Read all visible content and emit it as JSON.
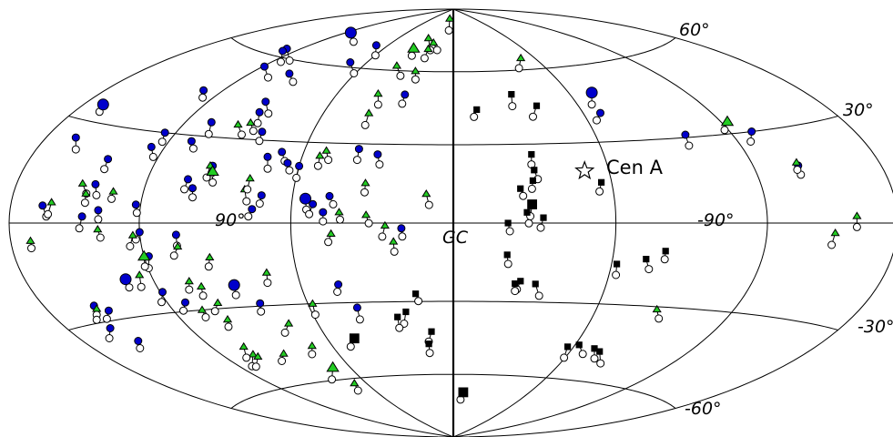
{
  "chart_data": {
    "type": "scatter",
    "projection": "aitoff-hammer, galactic coordinates, longitude increasing to the left",
    "x_range_deg": [
      -180,
      180
    ],
    "y_range_deg": [
      -90,
      90
    ],
    "labels": {
      "galactic_center": "GC",
      "source": "Cen A",
      "lon_left": "90°",
      "lon_right": "-90°",
      "lat_60n": "60°",
      "lat_30n": "30°",
      "lat_30s": "-30°",
      "lat_60s": "-60°"
    },
    "meridians_deg": [
      -180,
      -120,
      -60,
      0,
      60,
      120,
      180
    ],
    "parallels_deg": [
      -60,
      -30,
      0,
      30,
      60
    ],
    "marker_colors": {
      "circle_fill": "#0000cc",
      "triangle_fill": "#22cc22",
      "square_fill": "#000000",
      "open": "#ffffff"
    },
    "cen_a": {
      "lon": -50.5,
      "lat": 19.4
    },
    "series": [
      {
        "marker": "circle",
        "points": [
          [
            170,
            35
          ],
          [
            165,
            25
          ],
          [
            164,
            5
          ],
          [
            158,
            -32
          ],
          [
            155,
            -25
          ],
          [
            150,
            -27
          ],
          [
            152,
            -37
          ],
          [
            145,
            2
          ],
          [
            142,
            12
          ],
          [
            142,
            20
          ],
          [
            138,
            4
          ],
          [
            132,
            -18
          ],
          [
            130,
            45
          ],
          [
            129,
            63
          ],
          [
            128,
            62
          ],
          [
            126,
            25
          ],
          [
            125,
            30
          ],
          [
            122,
            6
          ],
          [
            120,
            -3
          ],
          [
            118,
            -11
          ],
          [
            119,
            56
          ],
          [
            119,
            -23
          ],
          [
            116,
            73
          ],
          [
            112,
            -27
          ],
          [
            110,
            28
          ],
          [
            108,
            35
          ],
          [
            105,
            -4
          ],
          [
            103,
            15
          ],
          [
            100,
            12
          ],
          [
            98,
            55
          ],
          [
            95,
            20
          ],
          [
            92,
            44
          ],
          [
            90,
            40
          ],
          [
            87,
            -22
          ],
          [
            82,
            33
          ],
          [
            80,
            -29
          ],
          [
            75,
            5
          ],
          [
            74,
            24
          ],
          [
            71,
            62
          ],
          [
            70,
            70
          ],
          [
            69,
            26
          ],
          [
            72,
            10
          ],
          [
            65,
            22
          ],
          [
            60,
            21
          ],
          [
            55,
            9
          ],
          [
            52,
            7
          ],
          [
            48,
            4
          ],
          [
            46,
            10
          ],
          [
            45,
            -23
          ],
          [
            40,
            -32
          ],
          [
            38,
            28
          ],
          [
            30,
            26
          ],
          [
            25,
            50
          ],
          [
            19,
            -2
          ],
          [
            -68,
            41
          ],
          [
            -72,
            49
          ],
          [
            -99,
            31
          ],
          [
            -130,
            30
          ],
          [
            -140,
            18
          ]
        ]
      },
      {
        "marker": "triangle",
        "points": [
          [
            170,
            -5
          ],
          [
            160,
            6
          ],
          [
            155,
            -26
          ],
          [
            148,
            12
          ],
          [
            145,
            9
          ],
          [
            138,
            -2
          ],
          [
            133,
            10
          ],
          [
            125,
            -17
          ],
          [
            123,
            -4
          ],
          [
            120,
            -11
          ],
          [
            105,
            -8
          ],
          [
            105,
            -20
          ],
          [
            107,
            -30
          ],
          [
            104,
            -47
          ],
          [
            104,
            -44
          ],
          [
            103,
            -48
          ],
          [
            101,
            -22
          ],
          [
            98,
            -28
          ],
          [
            99,
            -34
          ],
          [
            96,
            20
          ],
          [
            94,
            18
          ],
          [
            95,
            35
          ],
          [
            93,
            -12
          ],
          [
            90,
            36
          ],
          [
            88,
            -48
          ],
          [
            79,
            12
          ],
          [
            78,
            16
          ],
          [
            72,
            -18
          ],
          [
            73,
            -37
          ],
          [
            70,
            -46
          ],
          [
            68,
            -62
          ],
          [
            70,
            -55
          ],
          [
            58,
            -30
          ],
          [
            53,
            25
          ],
          [
            51,
            27
          ],
          [
            45,
            -4
          ],
          [
            42,
            4
          ],
          [
            39,
            42
          ],
          [
            39,
            50
          ],
          [
            38,
            62
          ],
          [
            33,
            15
          ],
          [
            32,
            3
          ],
          [
            35,
            70
          ],
          [
            28,
            75
          ],
          [
            25,
            -1
          ],
          [
            22,
            -7
          ],
          [
            22,
            70
          ],
          [
            24,
            60
          ],
          [
            20,
            73
          ],
          [
            11,
            85
          ],
          [
            10,
            11
          ],
          [
            -50,
            65
          ],
          [
            -86,
            -31
          ],
          [
            -123,
            34
          ],
          [
            -140,
            19
          ],
          [
            -150,
            -3
          ],
          [
            -160,
            2
          ]
        ]
      },
      {
        "marker": "square",
        "points": [
          [
            -11,
            44
          ],
          [
            -30,
            50
          ],
          [
            -40,
            45
          ],
          [
            -31,
            26
          ],
          [
            -31,
            20
          ],
          [
            -30,
            16
          ],
          [
            -25,
            13
          ],
          [
            -29,
            7
          ],
          [
            -27,
            4
          ],
          [
            -33,
            2
          ],
          [
            -20,
            -12
          ],
          [
            -26,
            -22
          ],
          [
            -24,
            -23
          ],
          [
            -32,
            -23
          ],
          [
            -62,
            -15
          ],
          [
            -73,
            -13
          ],
          [
            -56,
            15
          ],
          [
            -20,
            0
          ],
          [
            -8,
            -68
          ],
          [
            -75,
            -48
          ],
          [
            -57,
            -47
          ],
          [
            -71,
            -47
          ],
          [
            -62,
            -46
          ],
          [
            -80,
            -10
          ],
          [
            15,
            -27
          ],
          [
            20,
            -34
          ],
          [
            24,
            -36
          ],
          [
            10,
            -42
          ],
          [
            12,
            -47
          ],
          [
            47,
            -44
          ]
        ]
      }
    ]
  }
}
